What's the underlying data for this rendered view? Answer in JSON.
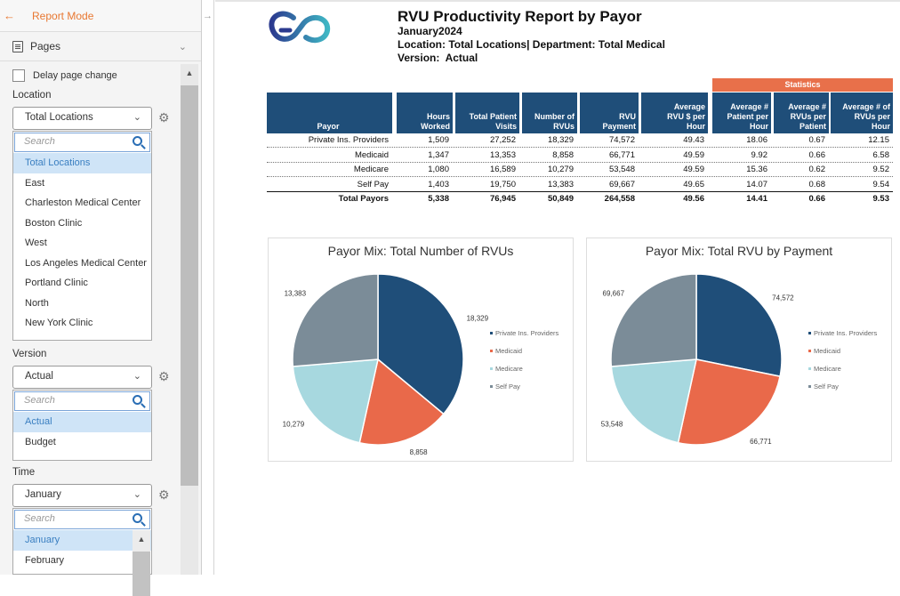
{
  "sidebar": {
    "mode_label": "Report Mode",
    "pages_label": "Pages",
    "delay_label": "Delay page change",
    "location": {
      "label": "Location",
      "selected": "Total Locations",
      "search_placeholder": "Search",
      "items": [
        "Total Locations",
        "East",
        "Charleston Medical Center",
        "Boston Clinic",
        "West",
        "Los Angeles Medical Center",
        "Portland Clinic",
        "North",
        "New York Clinic"
      ]
    },
    "version": {
      "label": "Version",
      "selected": "Actual",
      "search_placeholder": "Search",
      "items": [
        "Actual",
        "Budget"
      ]
    },
    "time": {
      "label": "Time",
      "selected": "January",
      "search_placeholder": "Search",
      "items": [
        "January",
        "February"
      ]
    }
  },
  "report": {
    "title": "RVU Productivity Report by Payor",
    "period": "January2024",
    "location_line": "Location: Total Locations| Department: Total Medical",
    "version_line": "Version:  Actual",
    "stats_header": "Statistics",
    "columns": {
      "payor": "Payor",
      "hours": [
        "Hours",
        "Worked"
      ],
      "visits": [
        "Total Patient",
        "Visits"
      ],
      "rvus": [
        "Number of",
        "RVUs"
      ],
      "payment": [
        "RVU",
        "Payment"
      ],
      "avg_rvu_dollar": [
        "Average",
        "RVU $ per",
        "Hour"
      ],
      "avg_patient": [
        "Average #",
        "Patient per",
        "Hour"
      ],
      "avg_rvu_patient": [
        "Average #",
        "RVUs per",
        "Patient"
      ],
      "avg_rvu_hour": [
        "Average # of",
        "RVUs per",
        "Hour"
      ]
    },
    "rows": [
      [
        "Private Ins. Providers",
        "1,509",
        "27,252",
        "18,329",
        "74,572",
        "49.43",
        "18.06",
        "0.67",
        "12.15"
      ],
      [
        "Medicaid",
        "1,347",
        "13,353",
        "8,858",
        "66,771",
        "49.59",
        "9.92",
        "0.66",
        "6.58"
      ],
      [
        "Medicare",
        "1,080",
        "16,589",
        "10,279",
        "53,548",
        "49.59",
        "15.36",
        "0.62",
        "9.52"
      ],
      [
        "Self Pay",
        "1,403",
        "19,750",
        "13,383",
        "69,667",
        "49.65",
        "14.07",
        "0.68",
        "9.54"
      ]
    ],
    "total": [
      "Total Payors",
      "5,338",
      "76,945",
      "50,849",
      "264,558",
      "49.56",
      "14.41",
      "0.66",
      "9.53"
    ]
  },
  "colors": {
    "header_blue": "#1f4e79",
    "stats_orange": "#e8704a",
    "accent_orange": "#e87832"
  },
  "chart_data": [
    {
      "type": "pie",
      "title": "Payor Mix: Total Number of RVUs",
      "labels": [
        "Private Ins. Providers",
        "Medicaid",
        "Medicare",
        "Self Pay"
      ],
      "values": [
        18329,
        8858,
        10279,
        13383
      ],
      "data_labels": [
        "18,329",
        "8,858",
        "10,279",
        "13,383"
      ],
      "colors": [
        "#1f4e79",
        "#e9694a",
        "#a7d8df",
        "#7b8c98"
      ],
      "legend_position": "right"
    },
    {
      "type": "pie",
      "title": "Payor Mix: Total RVU by Payment",
      "labels": [
        "Private Ins. Providers",
        "Medicaid",
        "Medicare",
        "Self Pay"
      ],
      "values": [
        74572,
        66771,
        53548,
        69667
      ],
      "data_labels": [
        "74,572",
        "66,771",
        "53,548",
        "69,667"
      ],
      "colors": [
        "#1f4e79",
        "#e9694a",
        "#a7d8df",
        "#7b8c98"
      ],
      "legend_position": "right"
    }
  ]
}
